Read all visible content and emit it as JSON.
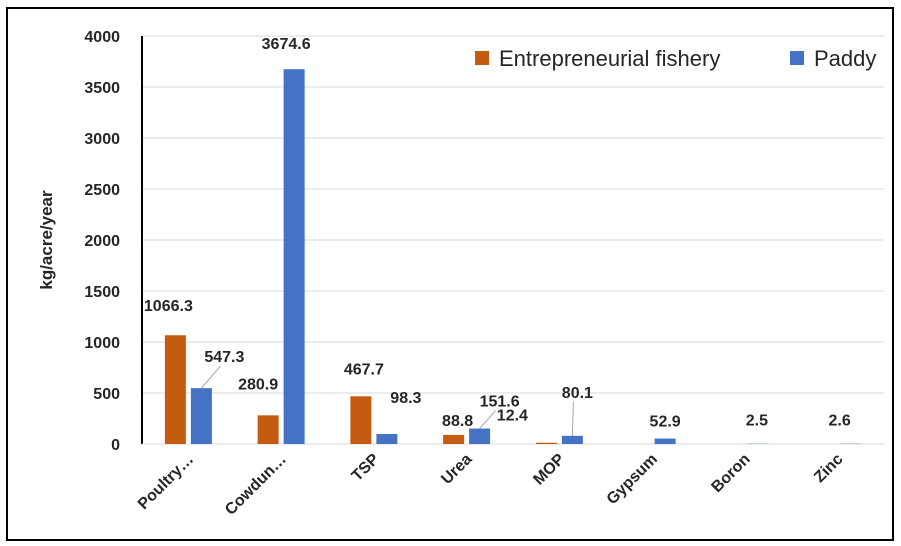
{
  "chart_data": {
    "type": "bar",
    "ylabel": "kg/acre/year",
    "ylim": [
      0,
      4000
    ],
    "yticks": [
      0,
      500,
      1000,
      1500,
      2000,
      2500,
      3000,
      3500,
      4000
    ],
    "grid": true,
    "legend_position": "top-right",
    "categories": [
      "Poultry…",
      "Cowdun…",
      "TSP",
      "Urea",
      "MOP",
      "Gypsum",
      "Boron",
      "Zinc"
    ],
    "series": [
      {
        "name": "Entrepreneurial fishery",
        "color": "#C55A11",
        "values": [
          1066.3,
          280.9,
          467.7,
          88.8,
          12.4,
          null,
          null,
          null
        ]
      },
      {
        "name": "Paddy",
        "color": "#4472C4",
        "values": [
          547.3,
          3674.6,
          98.3,
          151.6,
          80.1,
          52.9,
          2.5,
          2.6
        ]
      }
    ]
  }
}
